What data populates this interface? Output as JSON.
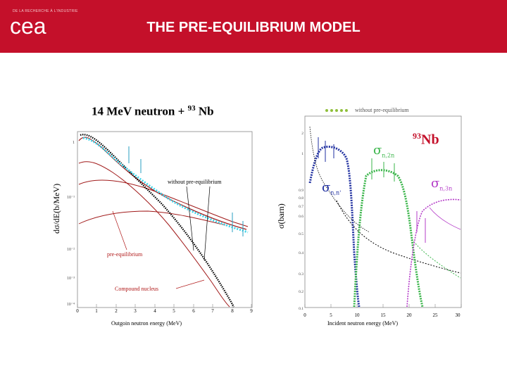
{
  "header": {
    "title": "THE PRE-EQUILIBRIUM MODEL",
    "logo_small_text": "DE LA RECHERCHE À L'INDUSTRIE",
    "logo_text": "cea"
  },
  "left_plot": {
    "title_main": "14 MeV neutron + ",
    "title_mass": "93",
    "title_element": " Nb",
    "ylabel": "dσ/dE(b/MeV)",
    "xlabel": "Outgoin  neutron energy (MeV)",
    "annotation_without": "without  pre-equilibrium",
    "annotation_pre": "pre-equilibrium",
    "annotation_compound": "Compound nucleus",
    "x_ticks": [
      "0",
      "1",
      "2",
      "3",
      "4",
      "5",
      "6",
      "7",
      "8",
      "9"
    ],
    "y_ticks": [
      "1",
      "10⁻¹",
      "10⁻²",
      "10⁻³",
      "10⁻⁴"
    ]
  },
  "right_plot": {
    "legend_text": "without pre-equilibrium",
    "ylabel": "σ(barn)",
    "xlabel": "Incident neutron energy (MeV)",
    "nucleus_mass": "93",
    "nucleus_symbol": "Nb",
    "label_n2n_sym": "σ",
    "label_n2n_sub": "n,2n",
    "label_nn_sym": "σ",
    "label_nn_sub": "n,n'",
    "label_n3n_sym": "σ",
    "label_n3n_sub": "n,3n",
    "x_ticks": [
      "0",
      "5",
      "10",
      "15",
      "20",
      "25",
      "30"
    ],
    "y_ticks": [
      "2",
      "1",
      "0.9",
      "0.8",
      "0.7",
      "0.6",
      "0.5",
      "0.4",
      "0.3",
      "0.2",
      "0.1"
    ]
  },
  "colors": {
    "brand_red": "#c4102a",
    "green": "#3ab54a",
    "blue": "#1f2fa0",
    "magenta": "#b43cc8",
    "cyan": "#3fd3e8",
    "legend_green": "#8fbf3a"
  }
}
